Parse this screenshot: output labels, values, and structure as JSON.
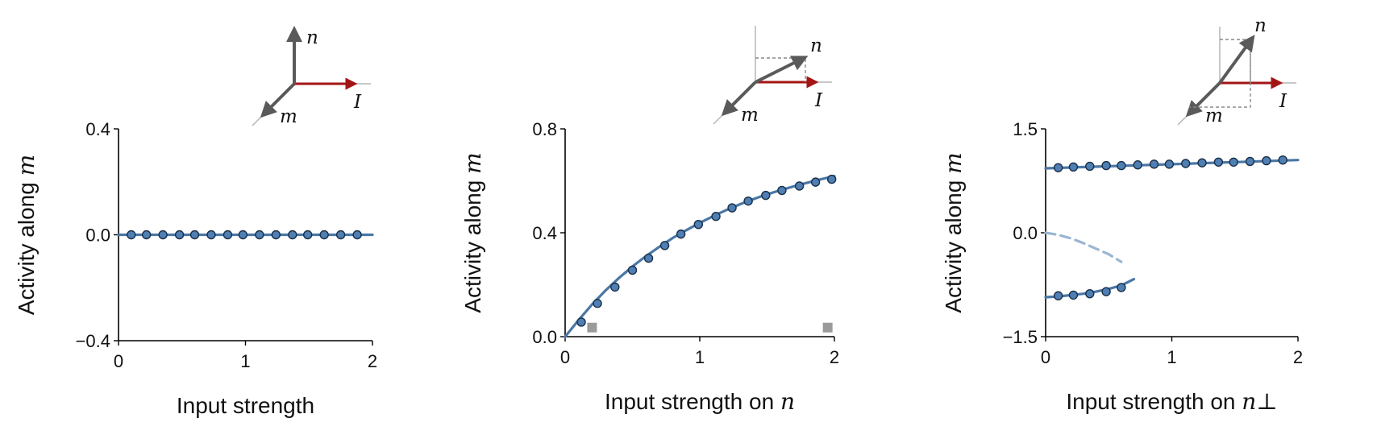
{
  "colors": {
    "model_line": "#4a77a5",
    "marker_fill": "#4f7fb3",
    "marker_edge": "#1a2f48",
    "unstable_line": "#9ab6d2",
    "input_vector": "#a31515",
    "vector_gray": "#5a5a5a",
    "square_marker": "#9a9a9a"
  },
  "chart_data": [
    {
      "type": "line",
      "panel": "left",
      "ylabel_prefix": "Activity along",
      "ylabel_var": "m",
      "xlabel_prefix": "Input strength",
      "xlabel_var": "",
      "xlim": [
        0,
        2
      ],
      "ylim": [
        -0.4,
        0.4
      ],
      "xticks": [
        "0",
        "1",
        "2"
      ],
      "yticks": [
        "−0.4",
        "0.0",
        "0.4"
      ],
      "ytick_values": [
        -0.4,
        0.0,
        0.4
      ],
      "series": [
        {
          "style": "line",
          "x": [
            0,
            2
          ],
          "y": [
            0,
            0
          ]
        },
        {
          "style": "markers",
          "x": [
            0.1,
            0.22,
            0.35,
            0.48,
            0.6,
            0.73,
            0.86,
            0.98,
            1.11,
            1.24,
            1.37,
            1.49,
            1.62,
            1.75,
            1.88
          ],
          "y": [
            0,
            0,
            0,
            0,
            0,
            0,
            0,
            0,
            0,
            0,
            0,
            0,
            0,
            0,
            0
          ]
        }
      ],
      "inset": {
        "labels": [
          "n",
          "m",
          "I"
        ]
      }
    },
    {
      "type": "line",
      "panel": "middle",
      "ylabel_prefix": "Activity along",
      "ylabel_var": "m",
      "xlabel_prefix": "Input strength on",
      "xlabel_var": "n",
      "xlim": [
        0,
        2
      ],
      "ylim": [
        0,
        0.8
      ],
      "xticks": [
        "0",
        "1",
        "2"
      ],
      "yticks": [
        "0.0",
        "0.4",
        "0.8"
      ],
      "ytick_values": [
        0.0,
        0.4,
        0.8
      ],
      "series": [
        {
          "style": "line",
          "x": [
            0,
            0.1,
            0.2,
            0.3,
            0.4,
            0.5,
            0.6,
            0.7,
            0.8,
            0.9,
            1.0,
            1.1,
            1.2,
            1.3,
            1.4,
            1.5,
            1.6,
            1.7,
            1.8,
            1.9,
            2.0
          ],
          "y": [
            0,
            0.064,
            0.124,
            0.178,
            0.226,
            0.27,
            0.31,
            0.346,
            0.38,
            0.41,
            0.438,
            0.464,
            0.488,
            0.51,
            0.53,
            0.548,
            0.564,
            0.579,
            0.593,
            0.606,
            0.618
          ]
        },
        {
          "style": "markers",
          "x": [
            0.12,
            0.24,
            0.37,
            0.5,
            0.62,
            0.74,
            0.86,
            0.99,
            1.12,
            1.24,
            1.36,
            1.49,
            1.61,
            1.74,
            1.86,
            1.98
          ],
          "y": [
            0.056,
            0.128,
            0.191,
            0.256,
            0.302,
            0.351,
            0.395,
            0.432,
            0.463,
            0.496,
            0.522,
            0.544,
            0.563,
            0.58,
            0.595,
            0.606
          ]
        },
        {
          "style": "squares",
          "x": [
            0.2,
            1.95
          ],
          "y": [
            0.035,
            0.035
          ]
        }
      ],
      "inset": {
        "labels": [
          "n",
          "m",
          "I"
        ]
      }
    },
    {
      "type": "line",
      "panel": "right",
      "ylabel_prefix": "Activity along",
      "ylabel_var": "m",
      "xlabel_prefix": "Input strength on",
      "xlabel_var": "n⊥",
      "xlim": [
        0,
        2
      ],
      "ylim": [
        -1.5,
        1.5
      ],
      "xticks": [
        "0",
        "1",
        "2"
      ],
      "yticks": [
        "−1.5",
        "0.0",
        "1.5"
      ],
      "ytick_values": [
        -1.5,
        0.0,
        1.5
      ],
      "series": [
        {
          "style": "line",
          "branch": "upper stable",
          "x": [
            0,
            0.5,
            1.0,
            1.5,
            2.0
          ],
          "y": [
            0.93,
            0.96,
            0.99,
            1.02,
            1.05
          ]
        },
        {
          "style": "dashed",
          "branch": "unstable",
          "x": [
            0,
            0.1,
            0.2,
            0.3,
            0.4,
            0.5,
            0.6
          ],
          "y": [
            0,
            -0.03,
            -0.08,
            -0.15,
            -0.23,
            -0.31,
            -0.42
          ]
        },
        {
          "style": "line",
          "branch": "lower stable",
          "x": [
            0,
            0.1,
            0.2,
            0.3,
            0.4,
            0.5,
            0.6,
            0.7
          ],
          "y": [
            -0.93,
            -0.92,
            -0.9,
            -0.88,
            -0.85,
            -0.81,
            -0.76,
            -0.67
          ]
        },
        {
          "style": "markers",
          "x": [
            0.1,
            0.22,
            0.35,
            0.48,
            0.6,
            0.73,
            0.86,
            0.98,
            1.11,
            1.24,
            1.37,
            1.49,
            1.62,
            1.75,
            1.88
          ],
          "y": [
            0.94,
            0.95,
            0.96,
            0.97,
            0.97,
            0.98,
            0.99,
            0.99,
            1.0,
            1.01,
            1.02,
            1.02,
            1.03,
            1.04,
            1.05
          ]
        },
        {
          "style": "markers",
          "x": [
            0.1,
            0.22,
            0.35,
            0.48,
            0.6
          ],
          "y": [
            -0.91,
            -0.9,
            -0.88,
            -0.85,
            -0.79
          ]
        }
      ],
      "inset": {
        "labels": [
          "n",
          "m",
          "I"
        ]
      }
    }
  ]
}
